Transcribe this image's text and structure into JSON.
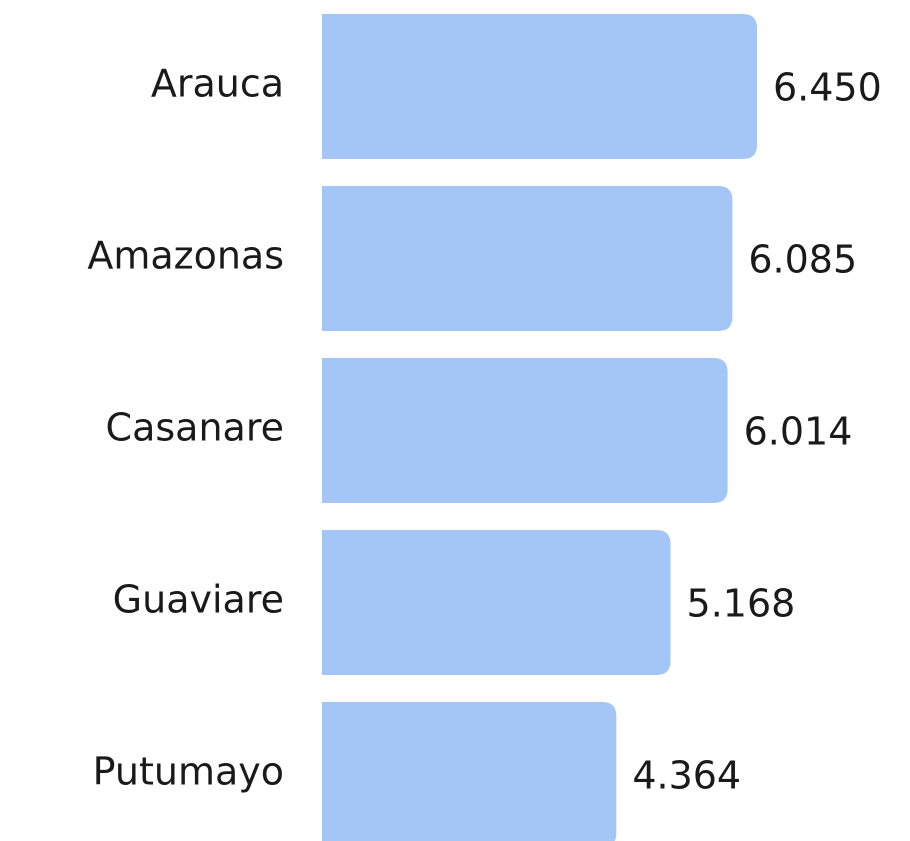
{
  "chart_data": {
    "type": "bar",
    "orientation": "horizontal",
    "categories": [
      "Arauca",
      "Amazonas",
      "Casanare",
      "Guaviare",
      "Putumayo"
    ],
    "values": [
      6.45,
      6.085,
      6.014,
      5.168,
      4.364
    ],
    "value_labels": [
      "6.450",
      "6.085",
      "6.014",
      "5.168",
      "4.364"
    ],
    "color": "#a3c6f7"
  }
}
